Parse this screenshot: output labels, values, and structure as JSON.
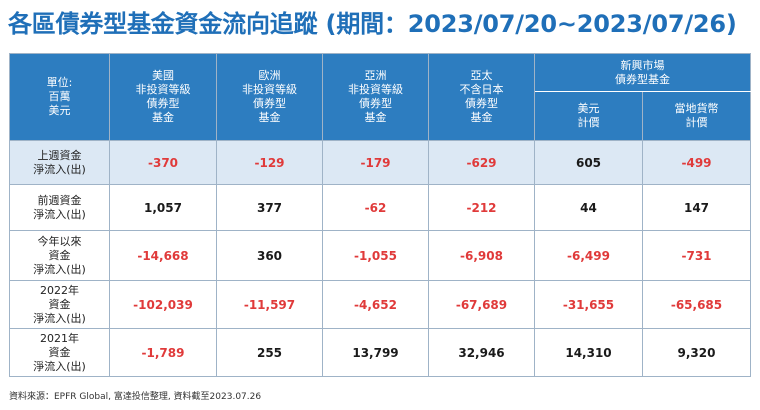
{
  "title": "各區債券型基金資金流向追蹤 (期間：2023/07/20~2023/07/26)",
  "header": {
    "corner": [
      "單位:",
      "百萬",
      "美元"
    ],
    "columns": [
      [
        "美國",
        "非投資等級",
        "債券型",
        "基金"
      ],
      [
        "歐洲",
        "非投資等級",
        "債券型",
        "基金"
      ],
      [
        "亞洲",
        "非投資等級",
        "債券型",
        "基金"
      ],
      [
        "亞太",
        "不含日本",
        "債券型",
        "基金"
      ]
    ],
    "em_group": [
      "新興市場",
      "債券型基金"
    ],
    "em_sub": [
      [
        "美元",
        "計價"
      ],
      [
        "當地貨幣",
        "計價"
      ]
    ]
  },
  "rows": [
    {
      "label": [
        "上週資金",
        "淨流入(出)"
      ],
      "values": [
        "-370",
        "-129",
        "-179",
        "-629",
        "605",
        "-499"
      ],
      "highlight": true
    },
    {
      "label": [
        "前週資金",
        "淨流入(出)"
      ],
      "values": [
        "1,057",
        "377",
        "-62",
        "-212",
        "44",
        "147"
      ],
      "highlight": false
    },
    {
      "label": [
        "今年以來",
        "資金",
        "淨流入(出)"
      ],
      "values": [
        "-14,668",
        "360",
        "-1,055",
        "-6,908",
        "-6,499",
        "-731"
      ],
      "highlight": false
    },
    {
      "label": [
        "2022年",
        "資金",
        "淨流入(出)"
      ],
      "values": [
        "-102,039",
        "-11,597",
        "-4,652",
        "-67,689",
        "-31,655",
        "-65,685"
      ],
      "highlight": false
    },
    {
      "label": [
        "2021年",
        "資金",
        "淨流入(出)"
      ],
      "values": [
        "-1,789",
        "255",
        "13,799",
        "32,946",
        "14,310",
        "9,320"
      ],
      "highlight": false
    }
  ],
  "source": "資料來源：EPFR Global, 富達投信整理, 資料截至2023.07.26",
  "colors": {
    "title": "#1f6fb8",
    "header_bg": "#2d7dc0",
    "highlight_row": "#dce8f4",
    "negative": "#e03a3a"
  }
}
